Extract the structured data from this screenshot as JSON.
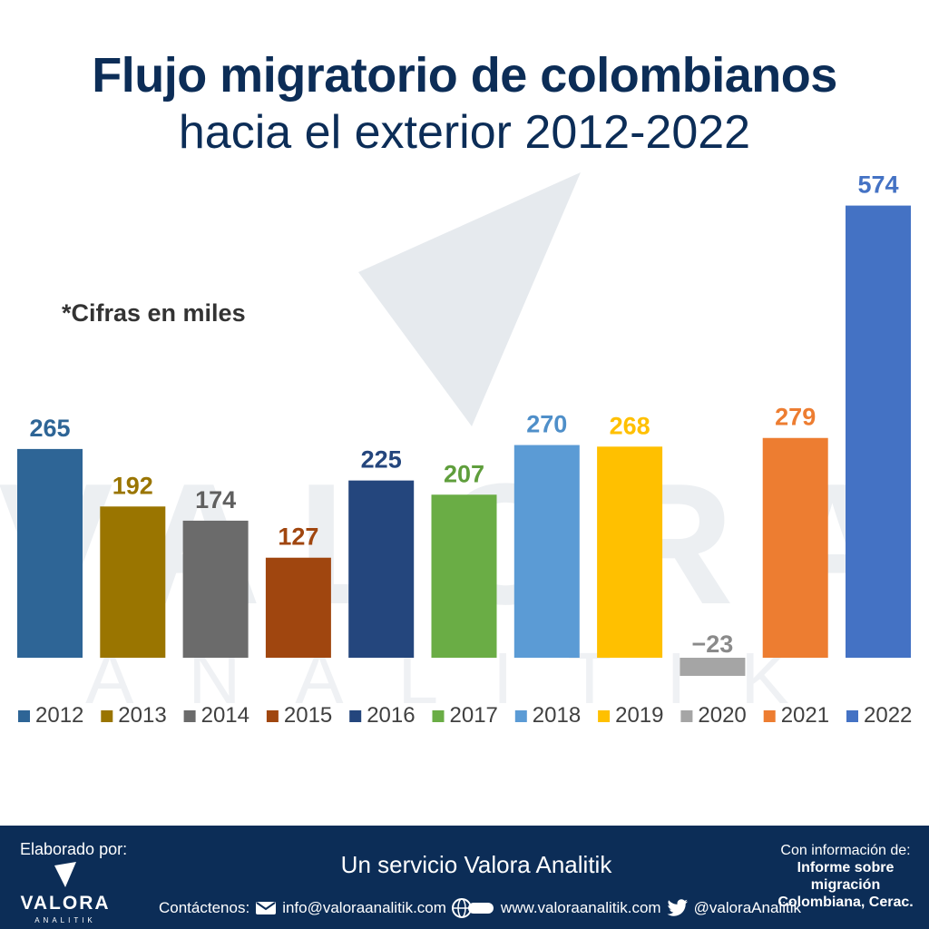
{
  "title_line1": "Flujo migratorio de colombianos",
  "title_line2": "hacia el exterior 2012-2022",
  "note": "*Cifras en miles",
  "chart_data": {
    "type": "bar",
    "categories": [
      "2012",
      "2013",
      "2014",
      "2015",
      "2016",
      "2017",
      "2018",
      "2019",
      "2020",
      "2021",
      "2022"
    ],
    "values": [
      265,
      192,
      174,
      127,
      225,
      207,
      270,
      268,
      -23,
      279,
      574
    ],
    "colors": [
      "#2e6596",
      "#9a7500",
      "#6b6b6b",
      "#a0460f",
      "#24467d",
      "#6aad45",
      "#5b9bd5",
      "#ffc000",
      "#a5a5a5",
      "#ed7d31",
      "#4472c4"
    ],
    "label_colors": [
      "#2e6596",
      "#9a7500",
      "#5f5f5f",
      "#a0460f",
      "#24467d",
      "#5f9e3c",
      "#4f8fc9",
      "#ffc000",
      "#8a8a8a",
      "#ed7d31",
      "#4472c4"
    ],
    "legend_position": "bottom",
    "grid": false
  },
  "watermark": {
    "word": "VALORA",
    "sub": "ANALITIK"
  },
  "footer": {
    "elaborado": "Elaborado por:",
    "logo_text": "VALORA",
    "logo_sub": "ANALITIK",
    "service": "Un servicio Valora Analitik",
    "contact_label": "Contáctenos:",
    "email": "info@valoraanalitik.com",
    "web": "www.valoraanalitik.com",
    "twitter": "@valoraAnalitik",
    "info_label": "Con información de:",
    "info_source": "Informe sobre migración Colombiana, Cerac."
  },
  "icons": [
    "mail-icon",
    "web-icon",
    "twitter-icon",
    "logo-icon"
  ]
}
